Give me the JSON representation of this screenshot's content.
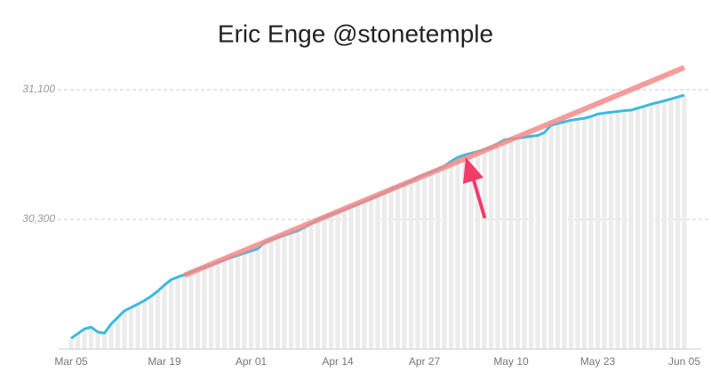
{
  "chart_data": {
    "type": "line",
    "title": "Eric Enge @stonetemple",
    "categories": [
      "Mar 05",
      null,
      null,
      null,
      null,
      null,
      null,
      null,
      null,
      null,
      null,
      null,
      null,
      null,
      "Mar 19",
      null,
      null,
      null,
      null,
      null,
      null,
      null,
      null,
      null,
      null,
      null,
      null,
      "Apr 01",
      null,
      null,
      null,
      null,
      null,
      null,
      null,
      null,
      null,
      null,
      null,
      null,
      "Apr 14",
      null,
      null,
      null,
      null,
      null,
      null,
      null,
      null,
      null,
      null,
      null,
      null,
      "Apr 27",
      null,
      null,
      null,
      null,
      null,
      null,
      null,
      null,
      null,
      null,
      null,
      null,
      "May 10",
      null,
      null,
      null,
      null,
      null,
      null,
      null,
      null,
      null,
      null,
      null,
      null,
      "May 23",
      null,
      null,
      null,
      null,
      null,
      null,
      null,
      null,
      null,
      null,
      null,
      null,
      "Jun 05"
    ],
    "values": [
      29566,
      29595,
      29624,
      29635,
      29605,
      29598,
      29654,
      29695,
      29736,
      29756,
      29777,
      29799,
      29826,
      29857,
      29895,
      29928,
      29944,
      29958,
      29975,
      29992,
      30005,
      30018,
      30035,
      30049,
      30064,
      30078,
      30092,
      30105,
      30119,
      30157,
      30177,
      30189,
      30201,
      30216,
      30230,
      30250,
      30273,
      30295,
      30314,
      30330,
      30344,
      30361,
      30377,
      30394,
      30410,
      30428,
      30446,
      30466,
      30486,
      30502,
      30519,
      30537,
      30559,
      30578,
      30592,
      30609,
      30629,
      30658,
      30683,
      30697,
      30708,
      30719,
      30732,
      30745,
      30768,
      30791,
      30796,
      30801,
      30807,
      30813,
      30818,
      30836,
      30881,
      30891,
      30902,
      30912,
      30918,
      30924,
      30935,
      30950,
      30956,
      30961,
      30966,
      30971,
      30974,
      30986,
      30998,
      31011,
      31021,
      31031,
      31043,
      31055,
      31067
    ],
    "color": "#3bbbdc",
    "show_bars": true,
    "bar_color": "#ececec",
    "ylim": [
      29500,
      31270
    ],
    "yticks": [
      {
        "value": 30300,
        "label": "30,300"
      },
      {
        "value": 31100,
        "label": "31,100"
      }
    ],
    "grid": true,
    "trend_line": {
      "x": [
        17,
        92
      ],
      "values": [
        29955,
        31237
      ],
      "color": "#f58a8a"
    }
  }
}
